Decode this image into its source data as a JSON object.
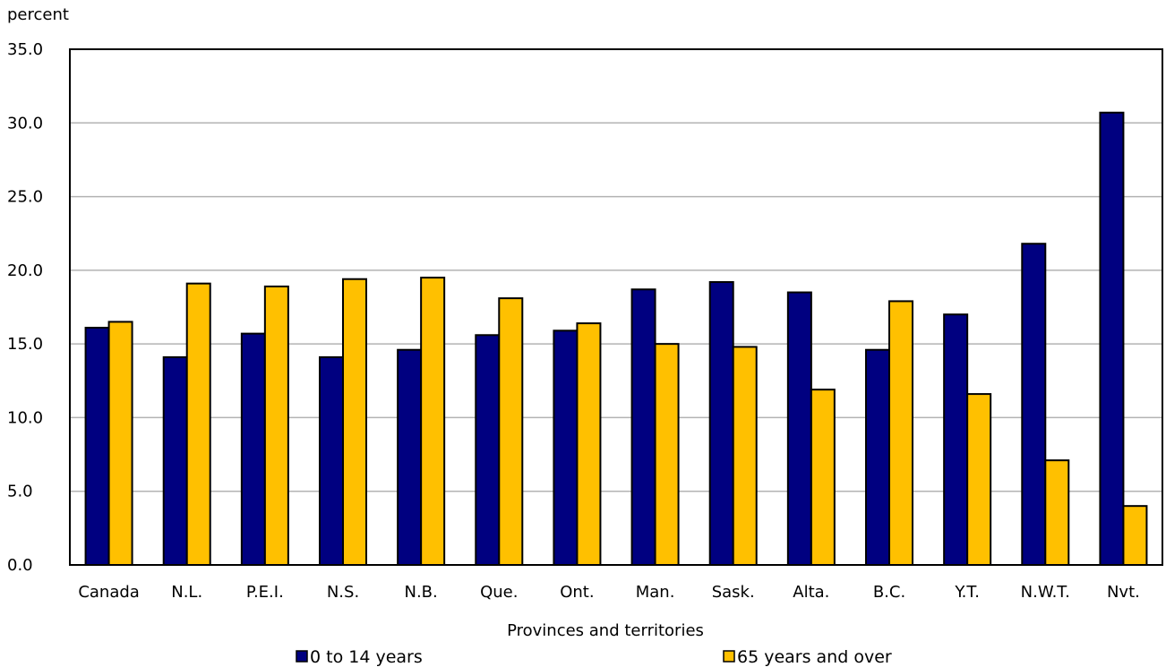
{
  "chart_data": {
    "type": "bar",
    "ylabel": "percent",
    "xlabel": "Provinces and territories",
    "ylim": [
      0,
      35
    ],
    "yticks": [
      "0.0",
      "5.0",
      "10.0",
      "15.0",
      "20.0",
      "25.0",
      "30.0",
      "35.0"
    ],
    "grid": true,
    "legend_position": "bottom",
    "categories": [
      "Canada",
      "N.L.",
      "P.E.I.",
      "N.S.",
      "N.B.",
      "Que.",
      "Ont.",
      "Man.",
      "Sask.",
      "Alta.",
      "B.C.",
      "Y.T.",
      "N.W.T.",
      "Nvt."
    ],
    "series": [
      {
        "name": "0 to 14 years",
        "color": "#000080",
        "values": [
          16.1,
          14.1,
          15.7,
          14.1,
          14.6,
          15.6,
          15.9,
          18.7,
          19.2,
          18.5,
          14.6,
          17.0,
          21.8,
          30.7
        ]
      },
      {
        "name": "65 years and over",
        "color": "#FFC000",
        "values": [
          16.5,
          19.1,
          18.9,
          19.4,
          19.5,
          18.1,
          16.4,
          15.0,
          14.8,
          11.9,
          17.9,
          11.6,
          7.1,
          4.0
        ]
      }
    ]
  }
}
